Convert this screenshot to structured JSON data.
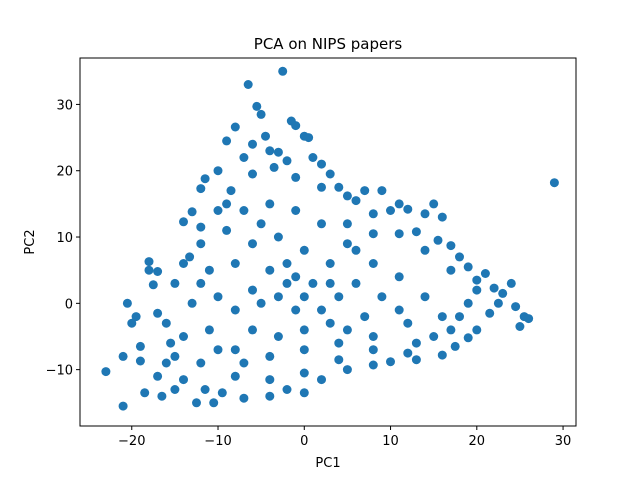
{
  "chart_data": {
    "type": "scatter",
    "title": "PCA on NIPS papers",
    "xlabel": "PC1",
    "ylabel": "PC2",
    "xlim": [
      -26,
      31.5
    ],
    "ylim": [
      -18.5,
      37
    ],
    "xticks": [
      -20,
      -10,
      0,
      10,
      20,
      30
    ],
    "yticks": [
      -10,
      0,
      10,
      20,
      30
    ],
    "xtick_labels": [
      "−20",
      "−10",
      "0",
      "10",
      "20",
      "30"
    ],
    "ytick_labels": [
      "−10",
      "0",
      "10",
      "20",
      "30"
    ],
    "grid": false,
    "legend": "none",
    "marker_color": "#1f77b4",
    "series": [
      {
        "points": [
          [
            -23,
            -10.3
          ],
          [
            -21,
            -15.5
          ],
          [
            -21,
            -8
          ],
          [
            -20.5,
            0
          ],
          [
            -20,
            -3
          ],
          [
            -19.5,
            -2
          ],
          [
            -19,
            -8.7
          ],
          [
            -19,
            -6.5
          ],
          [
            -18.5,
            -13.5
          ],
          [
            -18,
            6.3
          ],
          [
            -18,
            5
          ],
          [
            -17.5,
            2.8
          ],
          [
            -17,
            4.8
          ],
          [
            -17,
            -1.5
          ],
          [
            -17,
            -11
          ],
          [
            -16.5,
            -14
          ],
          [
            -16,
            -9
          ],
          [
            -15,
            -13
          ],
          [
            -14,
            12.3
          ],
          [
            -13.3,
            7
          ],
          [
            -13,
            13.8
          ],
          [
            -12.5,
            -15
          ],
          [
            -12,
            11.5
          ],
          [
            -12,
            17.3
          ],
          [
            -11.5,
            18.8
          ],
          [
            -10,
            20
          ],
          [
            -9,
            24.5
          ],
          [
            -8,
            26.6
          ],
          [
            -7,
            22
          ],
          [
            -6.5,
            33
          ],
          [
            -6,
            24
          ],
          [
            -5.5,
            29.7
          ],
          [
            -5,
            28.5
          ],
          [
            -4.5,
            25.2
          ],
          [
            -4,
            23
          ],
          [
            -3,
            22.8
          ],
          [
            -2.5,
            35
          ],
          [
            -2,
            21.5
          ],
          [
            -1.5,
            27.5
          ],
          [
            -1,
            26.8
          ],
          [
            0,
            25.2
          ],
          [
            0.5,
            25
          ],
          [
            1,
            22
          ],
          [
            2,
            21
          ],
          [
            3,
            19.5
          ],
          [
            4,
            17.5
          ],
          [
            5,
            16.2
          ],
          [
            6,
            15.5
          ],
          [
            7,
            17
          ],
          [
            8,
            13.5
          ],
          [
            9,
            17
          ],
          [
            10,
            14
          ],
          [
            11,
            15
          ],
          [
            12,
            14.2
          ],
          [
            13,
            10.8
          ],
          [
            14,
            13.5
          ],
          [
            15,
            15
          ],
          [
            15.5,
            9.5
          ],
          [
            16,
            13
          ],
          [
            17,
            8.7
          ],
          [
            18,
            7
          ],
          [
            19,
            5.5
          ],
          [
            20,
            3.5
          ],
          [
            21,
            4.5
          ],
          [
            22,
            2.3
          ],
          [
            23,
            1.5
          ],
          [
            24,
            3
          ],
          [
            24.5,
            -0.5
          ],
          [
            25,
            -3.5
          ],
          [
            25.5,
            -2
          ],
          [
            26,
            -2.3
          ],
          [
            29,
            18.2
          ],
          [
            22.5,
            0
          ],
          [
            21.5,
            -1.5
          ],
          [
            20,
            -4
          ],
          [
            19,
            -5.2
          ],
          [
            17.5,
            -6.5
          ],
          [
            16,
            -7.8
          ],
          [
            13,
            -8.5
          ],
          [
            10,
            -8.8
          ],
          [
            8,
            -9.3
          ],
          [
            5,
            -10
          ],
          [
            2,
            -11.5
          ],
          [
            0,
            -13.5
          ],
          [
            -2,
            -13
          ],
          [
            -4,
            -14
          ],
          [
            -7,
            -14.3
          ],
          [
            -9.5,
            -13.5
          ],
          [
            -10.5,
            -15
          ],
          [
            -11.5,
            -13
          ],
          [
            -14,
            -11.5
          ],
          [
            -15.5,
            -6
          ],
          [
            -16,
            -3
          ],
          [
            -15,
            3
          ],
          [
            -14,
            6
          ],
          [
            -12,
            9
          ],
          [
            -10,
            14
          ],
          [
            -8.5,
            17
          ],
          [
            -6,
            19.5
          ],
          [
            -3.5,
            20.5
          ],
          [
            -1,
            19
          ],
          [
            2,
            17.5
          ],
          [
            5,
            12
          ],
          [
            8,
            10.5
          ],
          [
            11,
            10.5
          ],
          [
            14,
            8
          ],
          [
            17,
            5
          ],
          [
            20,
            2
          ],
          [
            18,
            -2
          ],
          [
            15,
            -5
          ],
          [
            12,
            -7.5
          ],
          [
            8,
            -7
          ],
          [
            4,
            -8.5
          ],
          [
            0,
            -10.5
          ],
          [
            -4,
            -11.5
          ],
          [
            -8,
            -11
          ],
          [
            -12,
            -9
          ],
          [
            -14,
            -5
          ],
          [
            -13,
            0
          ],
          [
            -11,
            5
          ],
          [
            -9,
            11
          ],
          [
            -7,
            14
          ],
          [
            -4,
            15
          ],
          [
            -1,
            14
          ],
          [
            2,
            12
          ],
          [
            5,
            9
          ],
          [
            8,
            6
          ],
          [
            11,
            4
          ],
          [
            14,
            1
          ],
          [
            16,
            -2
          ],
          [
            12,
            -3
          ],
          [
            8,
            -5
          ],
          [
            4,
            -6
          ],
          [
            0,
            -7
          ],
          [
            -4,
            -8
          ],
          [
            -8,
            -7
          ],
          [
            -11,
            -4
          ],
          [
            -10,
            1
          ],
          [
            -8,
            6
          ],
          [
            -6,
            9
          ],
          [
            -3,
            10
          ],
          [
            0,
            8
          ],
          [
            3,
            6
          ],
          [
            6,
            3
          ],
          [
            9,
            1
          ],
          [
            11,
            -1
          ],
          [
            7,
            -2
          ],
          [
            3,
            -3
          ],
          [
            0,
            -4
          ],
          [
            -3,
            -5
          ],
          [
            -6,
            -4
          ],
          [
            -8,
            -1
          ],
          [
            -6,
            2
          ],
          [
            -4,
            5
          ],
          [
            -2,
            6
          ],
          [
            1,
            3
          ],
          [
            4,
            1
          ],
          [
            2,
            -1
          ],
          [
            -1,
            -1
          ],
          [
            -3,
            1
          ],
          [
            -5,
            0
          ],
          [
            -2,
            3
          ],
          [
            0,
            1
          ],
          [
            -1,
            4
          ],
          [
            3,
            3
          ],
          [
            5,
            -4
          ],
          [
            -7,
            -9
          ],
          [
            -10,
            -7
          ],
          [
            13,
            -6
          ],
          [
            17,
            -4
          ],
          [
            6,
            8
          ],
          [
            -5,
            12
          ],
          [
            -9,
            15
          ],
          [
            -12,
            3
          ],
          [
            -15,
            -8
          ],
          [
            19,
            0
          ]
        ]
      }
    ]
  }
}
